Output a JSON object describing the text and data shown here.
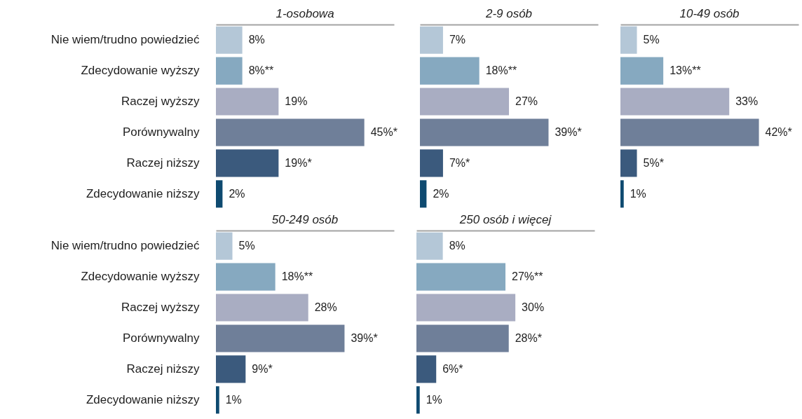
{
  "chart_data": [
    {
      "type": "bar",
      "orientation": "horizontal",
      "title": "1-osobowa",
      "categories": [
        "Nie wiem/trudno powiedzieć",
        "Zdecydowanie wyższy",
        "Raczej wyższy",
        "Porównywalny",
        "Raczej niższy",
        "Zdecydowanie niższy"
      ],
      "values": [
        8,
        8,
        19,
        45,
        19,
        2
      ],
      "value_labels": [
        "8%",
        "8%**",
        "19%",
        "45%*",
        "19%*",
        "2%"
      ],
      "colors": [
        "#b4c7d7",
        "#86a9c0",
        "#a9adc2",
        "#6f7f99",
        "#3b5a7d",
        "#0e4a70"
      ],
      "xlim": [
        0,
        54
      ],
      "tick_labels": "y"
    },
    {
      "type": "bar",
      "orientation": "horizontal",
      "title": "2-9 osób",
      "categories": [
        null,
        null,
        null,
        null,
        null,
        null
      ],
      "values": [
        7,
        18,
        27,
        39,
        7,
        2
      ],
      "value_labels": [
        "7%",
        "18%**",
        "27%",
        "39%*",
        "7%*",
        "2%"
      ],
      "colors": [
        "#b4c7d7",
        "#86a9c0",
        "#a9adc2",
        "#6f7f99",
        "#3b5a7d",
        "#0e4a70"
      ],
      "xlim": [
        0,
        54
      ],
      "tick_labels": false
    },
    {
      "type": "bar",
      "orientation": "horizontal",
      "title": "10-49 osób",
      "categories": [
        null,
        null,
        null,
        null,
        null,
        null
      ],
      "values": [
        5,
        13,
        33,
        42,
        5,
        1
      ],
      "value_labels": [
        "5%",
        "13%**",
        "33%",
        "42%*",
        "5%*",
        "1%"
      ],
      "colors": [
        "#b4c7d7",
        "#86a9c0",
        "#a9adc2",
        "#6f7f99",
        "#3b5a7d",
        "#0e4a70"
      ],
      "xlim": [
        0,
        54
      ],
      "tick_labels": false
    },
    {
      "type": "bar",
      "orientation": "horizontal",
      "title": "50-249 osób",
      "categories": [
        "Nie wiem/trudno powiedzieć",
        "Zdecydowanie wyższy",
        "Raczej wyższy",
        "Porównywalny",
        "Raczej niższy",
        "Zdecydowanie niższy"
      ],
      "values": [
        5,
        18,
        28,
        39,
        9,
        1
      ],
      "value_labels": [
        "5%",
        "18%**",
        "28%",
        "39%*",
        "9%*",
        "1%"
      ],
      "colors": [
        "#b4c7d7",
        "#86a9c0",
        "#a9adc2",
        "#6f7f99",
        "#3b5a7d",
        "#0e4a70"
      ],
      "xlim": [
        0,
        54
      ],
      "tick_labels": "y"
    },
    {
      "type": "bar",
      "orientation": "horizontal",
      "title": "250 osób i więcej",
      "categories": [
        null,
        null,
        null,
        null,
        null,
        null
      ],
      "values": [
        8,
        27,
        30,
        28,
        6,
        1
      ],
      "value_labels": [
        "8%",
        "27%**",
        "30%",
        "28%*",
        "6%*",
        "1%"
      ],
      "colors": [
        "#b4c7d7",
        "#86a9c0",
        "#a9adc2",
        "#6f7f99",
        "#3b5a7d",
        "#0e4a70"
      ],
      "xlim": [
        0,
        54
      ],
      "tick_labels": false
    }
  ]
}
